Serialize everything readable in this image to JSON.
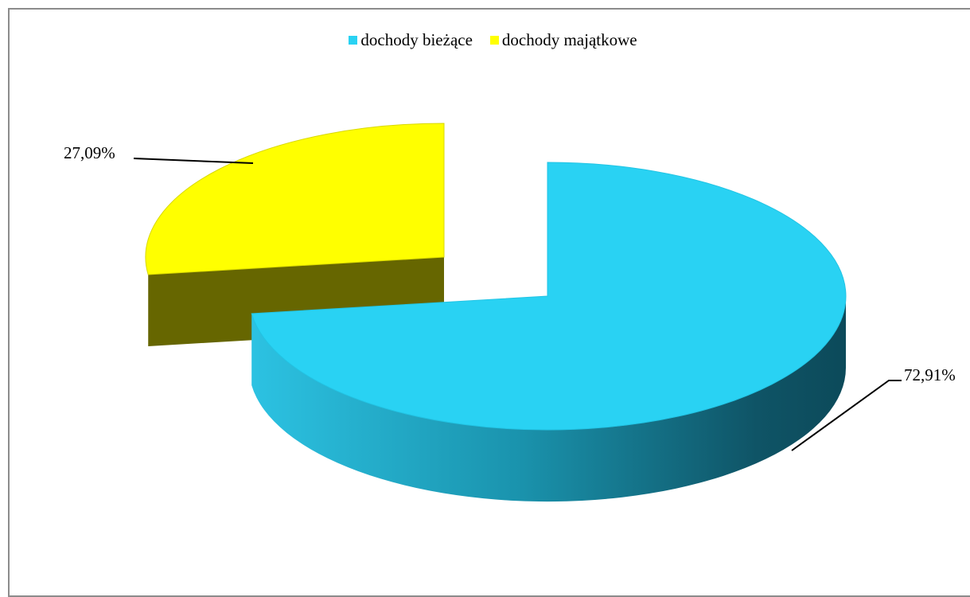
{
  "chart_data": {
    "type": "pie",
    "title": "",
    "categories": [
      "dochody bieżące",
      "dochody majątkowe"
    ],
    "values": [
      72.91,
      27.09
    ],
    "data_labels": [
      "72,91%",
      "27,09%"
    ],
    "colors": {
      "dochody bieżące": "#29d2f3",
      "dochody majątkowe": "#ffff00"
    },
    "legend_position": "top",
    "style": "3d-exploded"
  },
  "legend": {
    "items": [
      {
        "label": "dochody bieżące",
        "color": "#29d2f3"
      },
      {
        "label": "dochody majątkowe",
        "color": "#ffff00"
      }
    ]
  }
}
